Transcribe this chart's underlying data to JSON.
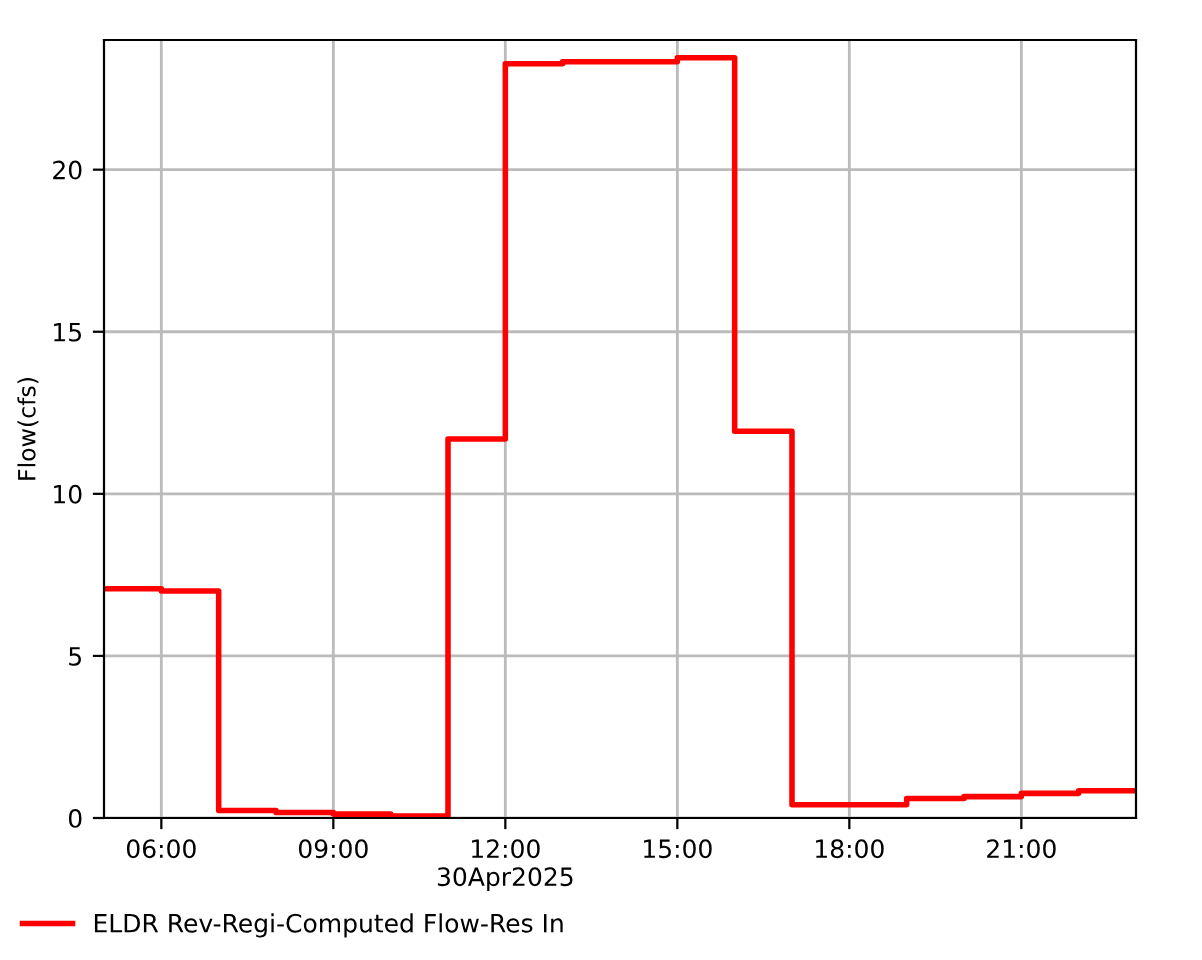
{
  "chart_data": {
    "type": "step",
    "ylabel": "Flow(cfs)",
    "x": [
      5,
      6,
      7,
      8,
      9,
      10,
      11,
      12,
      13,
      14,
      15,
      16,
      17,
      18,
      19,
      20,
      21,
      22,
      23
    ],
    "series": [
      {
        "name": "ELDR Rev-Regi-Computed Flow-Res In",
        "color": "#ff0000",
        "values": [
          7.07,
          7.0,
          0.23,
          0.17,
          0.12,
          0.06,
          11.69,
          23.27,
          23.33,
          23.33,
          23.45,
          11.93,
          0.41,
          0.41,
          0.6,
          0.66,
          0.76,
          0.84,
          0.84
        ]
      }
    ],
    "xlim": [
      5,
      23
    ],
    "xticks": [
      {
        "value": 6,
        "label": "06:00"
      },
      {
        "value": 9,
        "label": "09:00"
      },
      {
        "value": 12,
        "label": "12:00\n30Apr2025"
      },
      {
        "value": 15,
        "label": "15:00"
      },
      {
        "value": 18,
        "label": "18:00"
      },
      {
        "value": 21,
        "label": "21:00"
      }
    ],
    "ylim": [
      0,
      24
    ],
    "yticks": [
      0,
      5,
      10,
      15,
      20
    ],
    "grid": true,
    "legend": "bottom",
    "line_style": "solid"
  }
}
